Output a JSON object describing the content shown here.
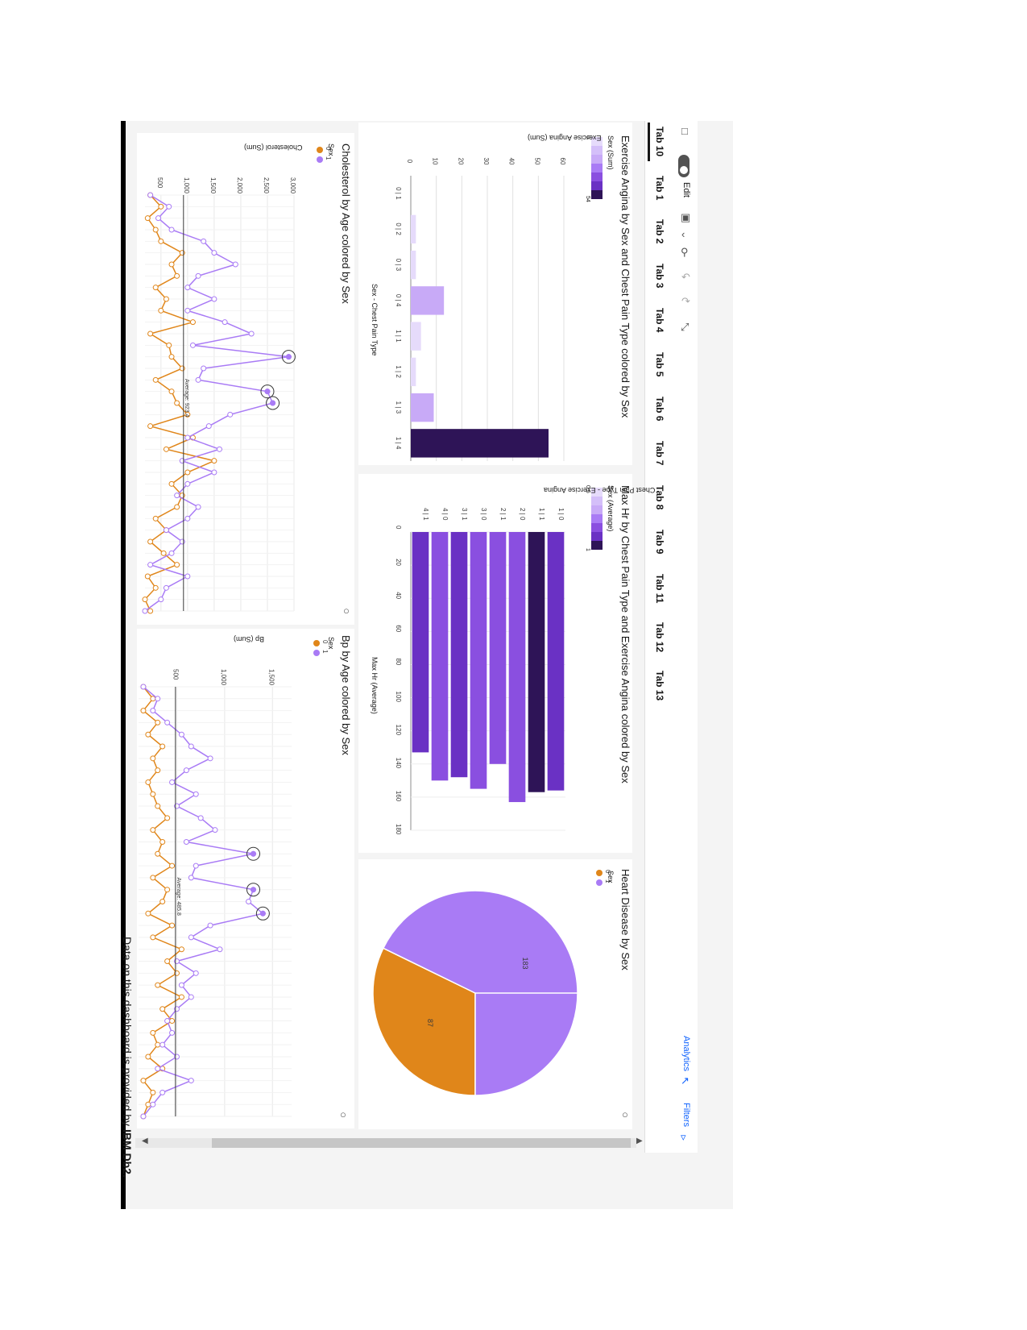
{
  "tabs": [
    {
      "label": "Tab 10",
      "active": true
    },
    {
      "label": "Tab 1"
    },
    {
      "label": "Tab 2"
    },
    {
      "label": "Tab 3"
    },
    {
      "label": "Tab 4"
    },
    {
      "label": "Tab 5"
    },
    {
      "label": "Tab 6"
    },
    {
      "label": "Tab 7"
    },
    {
      "label": "Tab 8"
    },
    {
      "label": "Tab 9"
    },
    {
      "label": "Tab 11"
    },
    {
      "label": "Tab 12"
    },
    {
      "label": "Tab 13"
    }
  ],
  "toolbar": {
    "edit_label": "Edit",
    "analytics_label": "Analytics",
    "filters_label": "Filters",
    "icons": [
      "comment-icon",
      "toggle-icon",
      "save-icon",
      "back-icon",
      "share-icon",
      "undo-icon",
      "redo-icon",
      "collapse-icon"
    ]
  },
  "colors": {
    "sex0": "#e0861a",
    "sex1": "#a97bf5",
    "dark": "#2e1457",
    "accent": "#8a4fe0",
    "pale": "#e6dbfb",
    "mid": "#c8aaf7"
  },
  "charts": {
    "exercise_angina": {
      "title": "Exercise Angina by Sex and Chest Pain Type colored by Sex",
      "legend_title": "Sex (Sum)",
      "legend_min": "0",
      "legend_max": "54",
      "ylabel": "Exercise Angina (Sum)",
      "xlabel": "Sex - Chest Pain Type"
    },
    "max_hr": {
      "title": "Max Hr by Chest Pain Type and Exercise Angina colored by Sex",
      "legend_title": "Sex (Average)",
      "legend_min": "0.5",
      "legend_max": "1",
      "ylabel": "Chest Pain Type - Exercise Angina",
      "xlabel": "Max Hr (Average)"
    },
    "heart_disease": {
      "title": "Heart Disease by Sex",
      "legend_title": "Sex",
      "legend_items": [
        "0",
        "1"
      ]
    },
    "cholesterol": {
      "title": "Cholesterol by Age colored by Sex",
      "legend_title": "Sex",
      "legend_items": [
        "0",
        "1"
      ],
      "ylabel": "Cholesterol (Sum)",
      "avg_label": "Average: 923.4"
    },
    "bp": {
      "title": "Bp by Age colored by Sex",
      "legend_title": "Sex",
      "legend_items": [
        "0",
        "1"
      ],
      "ylabel": "Bp (Sum)",
      "avg_label": "Average: 485.8"
    }
  },
  "footer": {
    "prefix": "Data on this dashboard is provided by ",
    "brand": "IBM Db2."
  },
  "chart_data": [
    {
      "type": "bar",
      "title": "Exercise Angina by Sex and Chest Pain Type colored by Sex",
      "xlabel": "Sex - Chest Pain Type",
      "ylabel": "Exercise Angina (Sum)",
      "categories": [
        "0 | 1",
        "0 | 2",
        "0 | 3",
        "0 | 4",
        "1 | 1",
        "1 | 2",
        "1 | 3",
        "1 | 4"
      ],
      "values": [
        0,
        2,
        2,
        13,
        4,
        2,
        9,
        54
      ],
      "yticks": [
        0,
        10,
        20,
        30,
        40,
        50,
        60
      ],
      "ylim": [
        0,
        60
      ]
    },
    {
      "type": "bar",
      "title": "Max Hr by Chest Pain Type and Exercise Angina colored by Sex",
      "xlabel": "Max Hr (Average)",
      "ylabel": "Chest Pain Type - Exercise Angina",
      "categories": [
        "1 | 0",
        "1 | 1",
        "2 | 0",
        "2 | 1",
        "3 | 0",
        "3 | 1",
        "4 | 0",
        "4 | 1"
      ],
      "values": [
        156,
        157,
        163,
        140,
        155,
        148,
        150,
        133
      ],
      "color_values": [
        0.72,
        1,
        0.6,
        0.5,
        0.52,
        0.74,
        0.66,
        0.75
      ],
      "xticks": [
        0,
        20,
        40,
        60,
        80,
        100,
        120,
        140,
        160,
        180
      ],
      "xlim": [
        0,
        180
      ]
    },
    {
      "type": "pie",
      "title": "Heart Disease by Sex",
      "categories": [
        "0",
        "1"
      ],
      "values": [
        87,
        183
      ]
    },
    {
      "type": "line",
      "title": "Cholesterol by Age colored by Sex",
      "ylabel": "Cholesterol (Sum)",
      "yticks": [
        500,
        1000,
        1500,
        2000,
        2500,
        3000
      ],
      "ylim": [
        200,
        3000
      ],
      "average": 923.4,
      "series": [
        {
          "name": "0",
          "values": [
            300,
            500,
            250,
            400,
            500,
            900,
            700,
            800,
            400,
            600,
            500,
            1100,
            300,
            650,
            700,
            900,
            400,
            700,
            800,
            1000,
            300,
            1100,
            600,
            1500,
            1000,
            700,
            900,
            800,
            400,
            600,
            300,
            550,
            800,
            250,
            400,
            200,
            300
          ]
        },
        {
          "name": "1",
          "values": [
            300,
            650,
            450,
            700,
            1300,
            1500,
            1900,
            1200,
            1000,
            1500,
            1000,
            1700,
            2200,
            1100,
            2900,
            1300,
            1200,
            2500,
            2600,
            1800,
            1400,
            1000,
            1600,
            900,
            1500,
            1000,
            800,
            1200,
            1000,
            600,
            900,
            700,
            300,
            1000,
            600,
            500,
            200
          ]
        }
      ]
    },
    {
      "type": "line",
      "title": "Bp by Age colored by Sex",
      "ylabel": "Bp (Sum)",
      "yticks": [
        500,
        1000,
        1500
      ],
      "ylim": [
        100,
        1700
      ],
      "average": 485.8,
      "series": [
        {
          "name": "0",
          "values": [
            150,
            250,
            150,
            300,
            200,
            350,
            250,
            300,
            200,
            250,
            300,
            400,
            250,
            350,
            300,
            450,
            250,
            400,
            350,
            200,
            450,
            250,
            550,
            400,
            500,
            300,
            550,
            350,
            450,
            250,
            300,
            200,
            350,
            150,
            250,
            200,
            150
          ]
        },
        {
          "name": "1",
          "values": [
            150,
            300,
            250,
            400,
            550,
            650,
            850,
            600,
            450,
            700,
            500,
            750,
            900,
            600,
            1300,
            700,
            650,
            1300,
            1250,
            1400,
            850,
            650,
            950,
            500,
            700,
            550,
            650,
            500,
            400,
            450,
            350,
            500,
            300,
            650,
            350,
            250,
            150
          ]
        }
      ]
    }
  ]
}
